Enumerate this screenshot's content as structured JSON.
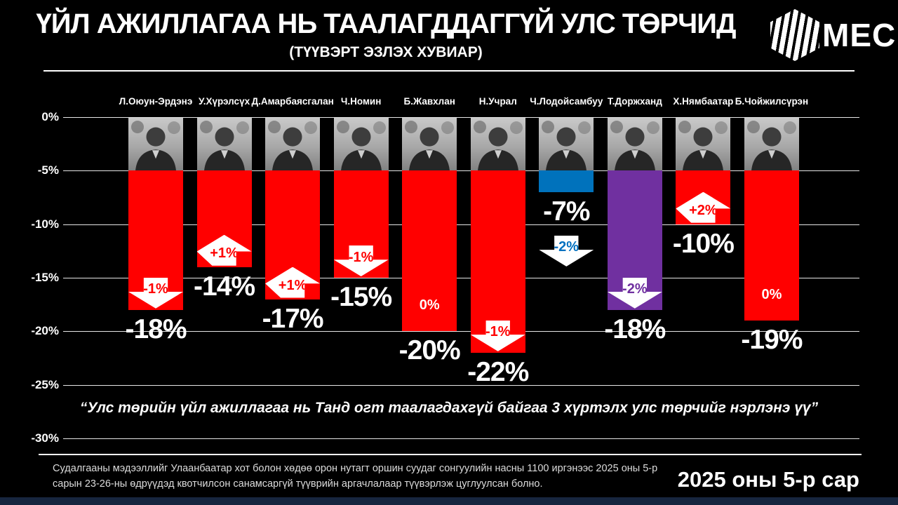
{
  "header": {
    "title": "ҮЙЛ АЖИЛЛАГАА НЬ ТААЛАГДДАГГҮЙ УЛС ТӨРЧИД",
    "subtitle": "(ТҮҮВЭРТ ЭЗЛЭХ ХУВИАР)",
    "logo_text": "MEC"
  },
  "chart_data": {
    "type": "bar",
    "title": "ҮЙЛ АЖИЛЛАГАА НЬ ТААЛАГДДАГГҮЙ УЛС ТӨРЧИД (ТҮҮВЭРТ ЭЗЛЭХ ХУВИАР)",
    "unit": "%",
    "ylim": [
      0,
      -30
    ],
    "grid": true,
    "y_tick_labels": [
      "0%",
      "-5%",
      "-10%",
      "-15%",
      "-20%",
      "-25%",
      "-30%"
    ],
    "y_tick_values": [
      0,
      -5,
      -10,
      -15,
      -20,
      -25,
      -30
    ],
    "categories": [
      "Л.Оюун-Эрдэнэ",
      "У.Хүрэлсүх",
      "Д.Амарбаясгалан",
      "Ч.Номин",
      "Б.Жавхлан",
      "Н.Учрал",
      "Ч.Лодойсамбуу",
      "Т.Доржханд",
      "Х.Нямбаатар",
      "Б.Чойжилсүрэн"
    ],
    "values": [
      -18,
      -14,
      -17,
      -15,
      -20,
      -22,
      -7,
      -18,
      -10,
      -19
    ],
    "politicians": [
      {
        "name": "Л.Оюун-Эрдэнэ",
        "value": -18,
        "value_label": "-18%",
        "change": "-1%",
        "change_dir": "down",
        "change_pos": "bar",
        "bar_color": "#ff0000",
        "change_color": "#ff0000"
      },
      {
        "name": "У.Хүрэлсүх",
        "value": -14,
        "value_label": "-14%",
        "change": "+1%",
        "change_dir": "up",
        "change_pos": "bar",
        "bar_color": "#ff0000",
        "change_color": "#ff0000"
      },
      {
        "name": "Д.Амарбаясгалан",
        "value": -17,
        "value_label": "-17%",
        "change": "+1%",
        "change_dir": "up",
        "change_pos": "bar",
        "bar_color": "#ff0000",
        "change_color": "#ff0000"
      },
      {
        "name": "Ч.Номин",
        "value": -15,
        "value_label": "-15%",
        "change": "-1%",
        "change_dir": "down",
        "change_pos": "bar",
        "bar_color": "#ff0000",
        "change_color": "#ff0000"
      },
      {
        "name": "Б.Жавхлан",
        "value": -20,
        "value_label": "-20%",
        "change": "0%",
        "change_dir": "none",
        "change_pos": "bar",
        "bar_color": "#ff0000",
        "change_color": "#ffffff"
      },
      {
        "name": "Н.Учрал",
        "value": -22,
        "value_label": "-22%",
        "change": "-1%",
        "change_dir": "down",
        "change_pos": "bar",
        "bar_color": "#ff0000",
        "change_color": "#ff0000"
      },
      {
        "name": "Ч.Лодойсамбуу",
        "value": -7,
        "value_label": "-7%",
        "change": "-2%",
        "change_dir": "down",
        "change_pos": "below",
        "bar_color": "#0072bc",
        "change_color": "#0070c0"
      },
      {
        "name": "Т.Доржханд",
        "value": -18,
        "value_label": "-18%",
        "change": "-2%",
        "change_dir": "down",
        "change_pos": "bar",
        "bar_color": "#7030a0",
        "change_color": "#7030a0"
      },
      {
        "name": "Х.Нямбаатар",
        "value": -10,
        "value_label": "-10%",
        "change": "+2%",
        "change_dir": "up",
        "change_pos": "bar",
        "bar_color": "#ff0000",
        "change_color": "#ff0000"
      },
      {
        "name": "Б.Чойжилсүрэн",
        "value": -19,
        "value_label": "-19%",
        "change": "0%",
        "change_dir": "none",
        "change_pos": "bar",
        "bar_color": "#ff0000",
        "change_color": "#ffffff"
      }
    ],
    "colors": {
      "default_bar": "#ff0000",
      "blue_bar": "#0072bc",
      "purple_bar": "#7030a0",
      "arrow_fill": "#ffffff",
      "background": "#000000",
      "text": "#ffffff"
    },
    "legend_position": "none"
  },
  "quote": "“Улс төрийн үйл ажиллагаа нь Танд огт таалагдахгүй байгаа 3 хүртэлх улс төрчийг нэрлэнэ үү”",
  "footer": {
    "note": "Судалгааны мэдээллийг Улаанбаатар хот болон хөдөө орон нутагт оршин суудаг сонгуулийн насны 1100 иргэнээс 2025 оны 5-р сарын 23-26-ны өдрүүдэд квотчилсон санамсаргүй түүврийн аргачлалаар түүвэрлэж цуглуулсан болно.",
    "period": "2025 оны 5-р сар"
  }
}
